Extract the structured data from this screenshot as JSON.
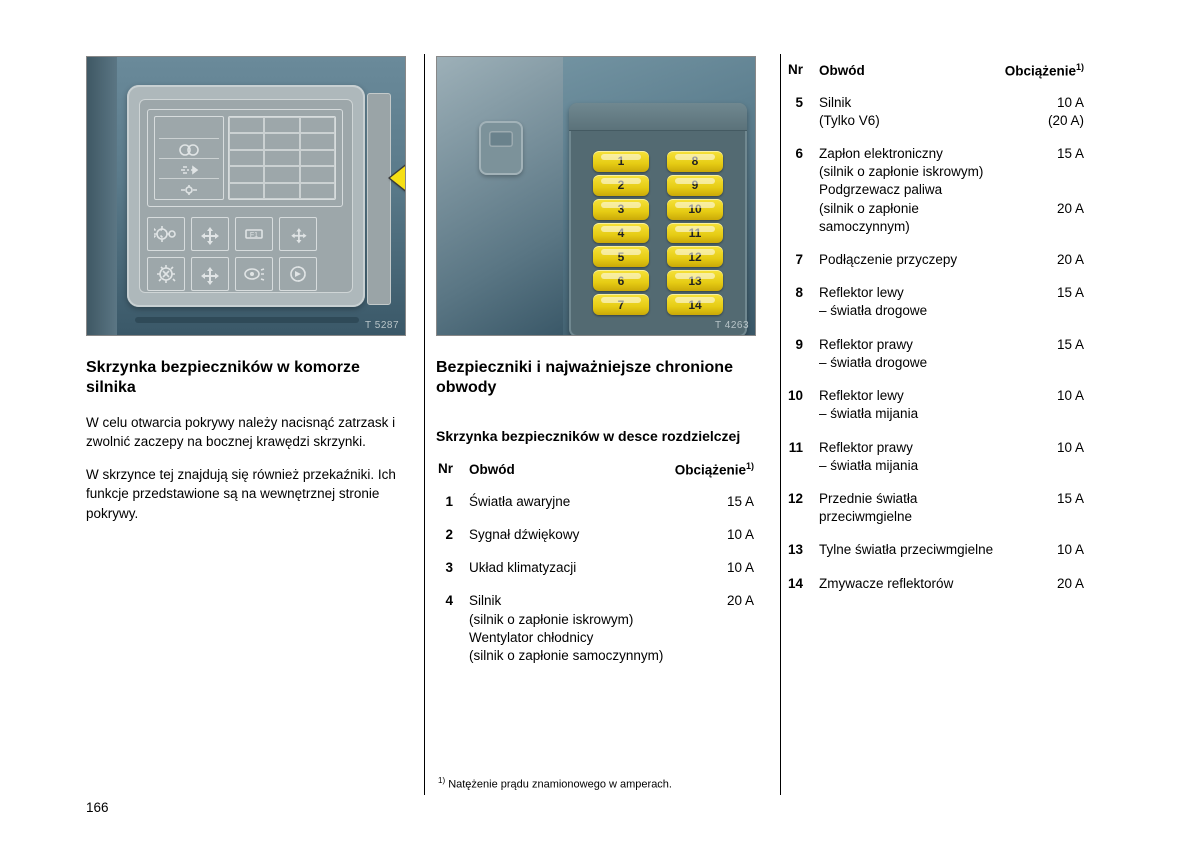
{
  "illustration1": {
    "code": "T 5287",
    "arrow_color": "#f6df14",
    "arrow_stroke": "#3a3a3a"
  },
  "illustration2": {
    "code": "T 4263",
    "fuse_numbers_left": [
      "1",
      "2",
      "3",
      "4",
      "5",
      "6",
      "7"
    ],
    "fuse_numbers_right": [
      "8",
      "9",
      "10",
      "11",
      "12",
      "13",
      "14"
    ],
    "fuse_color": "#f6e23a"
  },
  "col1": {
    "heading": "Skrzynka bezpieczników w komorze silnika",
    "p1": "W celu otwarcia pokrywy należy nacisnąć zatrzask i zwolnić zaczepy na bocznej krawędzi skrzynki.",
    "p2": "W skrzynce tej znajdują się również przekaźniki. Ich funkcje przedstawione są na wewnętrznej stronie pokrywy."
  },
  "col2": {
    "heading": "Bezpieczniki i najważniejsze chronione obwody",
    "subheading": "Skrzynka bezpieczników w desce rozdzielczej",
    "table": {
      "hdr_nr": "Nr",
      "hdr_obwod": "Obwód",
      "hdr_obc": "Obciążenie",
      "fn_mark": "1)",
      "rows": [
        {
          "nr": "1",
          "obwod": "Światła awaryjne",
          "obc": "15 A"
        },
        {
          "nr": "2",
          "obwod": "Sygnał dźwiękowy",
          "obc": "10 A"
        },
        {
          "nr": "3",
          "obwod": "Układ klimatyzacji",
          "obc": "10 A"
        },
        {
          "nr": "4",
          "obwod": "Silnik\n(silnik o zapłonie iskrowym)\nWentylator chłodnicy\n(silnik o zapłonie samoczynnym)",
          "obc": "20 A"
        }
      ]
    }
  },
  "col3": {
    "table": {
      "hdr_nr": "Nr",
      "hdr_obwod": "Obwód",
      "hdr_obc": "Obciążenie",
      "fn_mark": "1)",
      "rows": [
        {
          "nr": "5",
          "obwod": "Silnik\n(Tylko V6)",
          "obc": "10 A\n(20 A)"
        },
        {
          "nr": "6",
          "obwod": "Zapłon elektroniczny\n(silnik o zapłonie iskrowym)\nPodgrzewacz paliwa\n(silnik o zapłonie samoczynnym)",
          "obc": "15 A\n\n\n20 A"
        },
        {
          "nr": "7",
          "obwod": "Podłączenie przyczepy",
          "obc": "20 A"
        },
        {
          "nr": "8",
          "obwod": "Reflektor lewy\n– światła drogowe",
          "obc": "15 A"
        },
        {
          "nr": "9",
          "obwod": "Reflektor prawy\n– światła drogowe",
          "obc": "15 A"
        },
        {
          "nr": "10",
          "obwod": "Reflektor lewy\n– światła mijania",
          "obc": "10 A"
        },
        {
          "nr": "11",
          "obwod": "Reflektor prawy\n– światła mijania",
          "obc": "10 A"
        },
        {
          "nr": "12",
          "obwod": "Przednie światła przeciwmgielne",
          "obc": "15 A"
        },
        {
          "nr": "13",
          "obwod": "Tylne światła przeciwmgielne",
          "obc": "10 A"
        },
        {
          "nr": "14",
          "obwod": "Zmywacze reflektorów",
          "obc": "20 A"
        }
      ]
    }
  },
  "footnote": {
    "mark": "1)",
    "text": "Natężenie prądu znamionowego w amperach."
  },
  "page_number": "166"
}
